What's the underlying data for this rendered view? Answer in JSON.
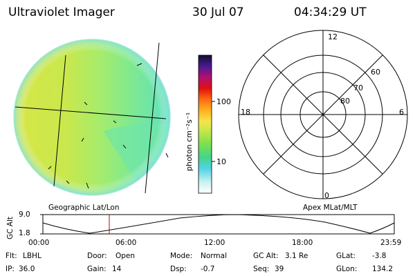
{
  "header": {
    "instrument": "Ultraviolet Imager",
    "date": "30 Jul 07",
    "time": "04:34:29 UT"
  },
  "colorbar": {
    "unit_label": "photon cm⁻²s⁻¹",
    "ticks": [
      "100",
      "10"
    ],
    "scale": "log"
  },
  "polar_plot": {
    "mlt_labels": [
      "12",
      "18",
      "6",
      "0"
    ],
    "lat_labels": [
      "60",
      "70",
      "80"
    ]
  },
  "section_labels": {
    "left": "Geographic Lat/Lon",
    "right": "Apex MLat/MLT"
  },
  "altitude_plot": {
    "ylabel": "GC Alt",
    "yticks": [
      "9.0",
      "1.8"
    ],
    "xticks": [
      "00:00",
      "06:00",
      "12:00",
      "18:00",
      "23:59"
    ],
    "marker_time": "04:34:29"
  },
  "footer": {
    "row1": [
      {
        "label": "Flt:",
        "value": "LBHL"
      },
      {
        "label": "Door:",
        "value": "Open"
      },
      {
        "label": "Mode:",
        "value": "Normal"
      },
      {
        "label": "GC Alt:",
        "value": "3.1 Re"
      },
      {
        "label": "GLat:",
        "value": "-3.8"
      }
    ],
    "row2": [
      {
        "label": "IP:",
        "value": "36.0"
      },
      {
        "label": "Gain:",
        "value": "14"
      },
      {
        "label": "Dsp:",
        "value": "-0.7"
      },
      {
        "label": "Seq:",
        "value": "39"
      },
      {
        "label": "GLon:",
        "value": "134.2"
      }
    ]
  },
  "colors": {
    "marker": "#c00000",
    "image_left": "#dfe84a",
    "image_right": "#7ee98a"
  }
}
